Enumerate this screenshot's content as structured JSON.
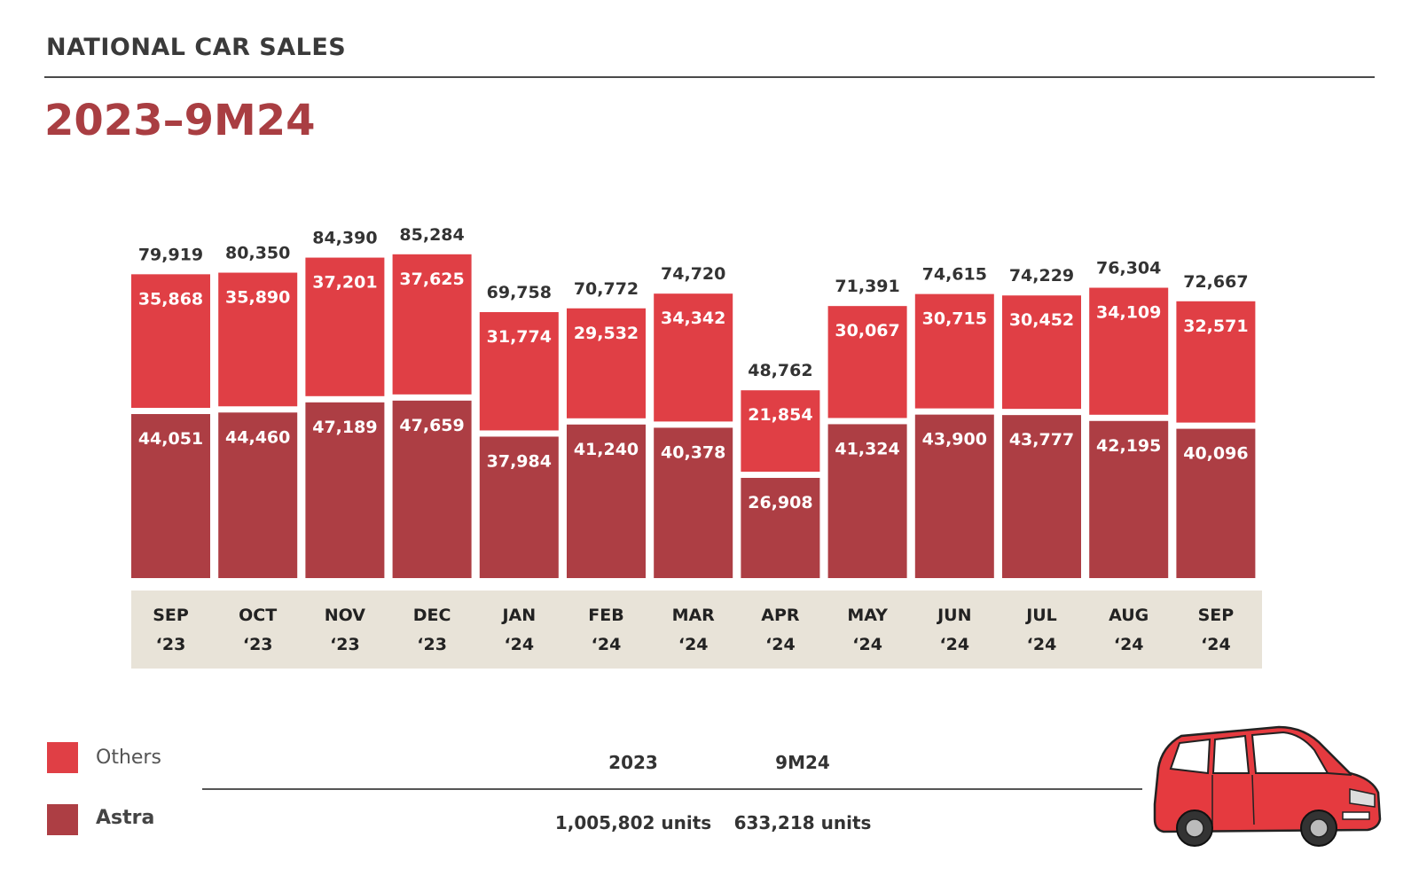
{
  "header": {
    "title": "NATIONAL CAR SALES"
  },
  "period_title": "2023–9M24",
  "colors": {
    "others": "#e03f45",
    "astra": "#ad3e44",
    "axis_band": "#e8e3d8",
    "title_red": "#a93e42"
  },
  "legend": {
    "others_label": "Others",
    "astra_label": "Astra"
  },
  "summary": {
    "col_2023_header": "2023",
    "col_9m24_header": "9M24",
    "col_2023_value": "1,005,802 units",
    "col_9m24_value": "633,218 units"
  },
  "chart_data": {
    "type": "bar",
    "stacked": true,
    "categories": [
      [
        "SEP",
        "‘23"
      ],
      [
        "OCT",
        "‘23"
      ],
      [
        "NOV",
        "‘23"
      ],
      [
        "DEC",
        "‘23"
      ],
      [
        "JAN",
        "‘24"
      ],
      [
        "FEB",
        "‘24"
      ],
      [
        "MAR",
        "‘24"
      ],
      [
        "APR",
        "‘24"
      ],
      [
        "MAY",
        "‘24"
      ],
      [
        "JUN",
        "‘24"
      ],
      [
        "JUL",
        "‘24"
      ],
      [
        "AUG",
        "‘24"
      ],
      [
        "SEP",
        "‘24"
      ]
    ],
    "series": [
      {
        "name": "Astra",
        "values": [
          44051,
          44460,
          47189,
          47659,
          37984,
          41240,
          40378,
          26908,
          41324,
          43900,
          43777,
          42195,
          40096
        ],
        "labels": [
          "44,051",
          "44,460",
          "47,189",
          "47,659",
          "37,984",
          "41,240",
          "40,378",
          "26,908",
          "41,324",
          "43,900",
          "43,777",
          "42,195",
          "40,096"
        ]
      },
      {
        "name": "Others",
        "values": [
          35868,
          35890,
          37201,
          37625,
          31774,
          29532,
          34342,
          21854,
          30067,
          30715,
          30452,
          34109,
          32571
        ],
        "labels": [
          "35,868",
          "35,890",
          "37,201",
          "37,625",
          "31,774",
          "29,532",
          "34,342",
          "21,854",
          "30,067",
          "30,715",
          "30,452",
          "34,109",
          "32,571"
        ]
      }
    ],
    "totals": [
      79919,
      80350,
      84390,
      85284,
      69758,
      70772,
      74720,
      48762,
      71391,
      74615,
      74229,
      76304,
      72667
    ],
    "total_labels": [
      "79,919",
      "80,350",
      "84,390",
      "85,284",
      "69,758",
      "70,772",
      "74,720",
      "48,762",
      "71,391",
      "74,615",
      "74,229",
      "76,304",
      "72,667"
    ],
    "legend_position": "bottom-left"
  },
  "icons": {
    "car": "red-minivan-illustration"
  }
}
